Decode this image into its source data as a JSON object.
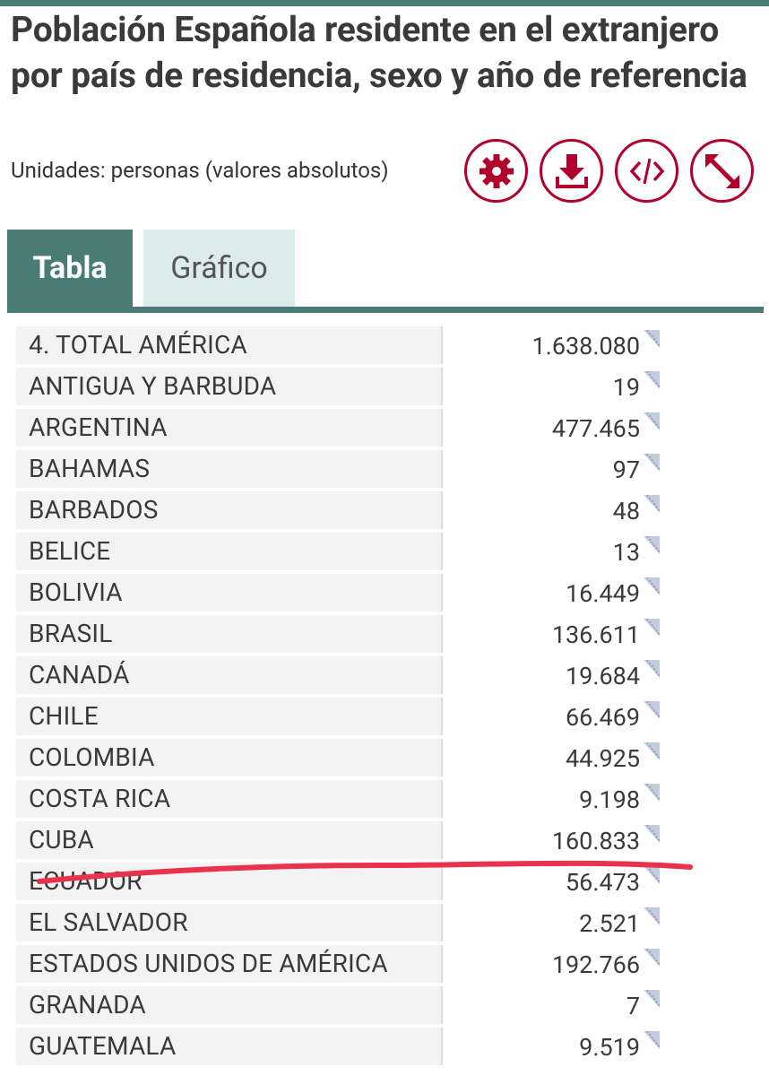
{
  "page": {
    "title": "Población Española residente en el extranjero por país de residencia, sexo y año de referencia",
    "units": "Unidades: personas (valores absolutos)"
  },
  "toolbar": {
    "buttons": [
      {
        "name": "settings-button",
        "icon": "gear-icon"
      },
      {
        "name": "download-button",
        "icon": "download-icon"
      },
      {
        "name": "embed-button",
        "icon": "code-icon"
      },
      {
        "name": "fullscreen-button",
        "icon": "expand-icon"
      }
    ]
  },
  "tabs": [
    {
      "label": "Tabla",
      "active": true
    },
    {
      "label": "Gráfico",
      "active": false
    }
  ],
  "table": {
    "rows": [
      {
        "label": "4. TOTAL AMÉRICA",
        "value": "1.638.080"
      },
      {
        "label": "ANTIGUA Y BARBUDA",
        "value": "19"
      },
      {
        "label": "ARGENTINA",
        "value": "477.465"
      },
      {
        "label": "BAHAMAS",
        "value": "97"
      },
      {
        "label": "BARBADOS",
        "value": "48"
      },
      {
        "label": "BELICE",
        "value": "13"
      },
      {
        "label": "BOLIVIA",
        "value": "16.449"
      },
      {
        "label": "BRASIL",
        "value": "136.611"
      },
      {
        "label": "CANADÁ",
        "value": "19.684"
      },
      {
        "label": "CHILE",
        "value": "66.469"
      },
      {
        "label": "COLOMBIA",
        "value": "44.925"
      },
      {
        "label": "COSTA RICA",
        "value": "9.198"
      },
      {
        "label": "CUBA",
        "value": "160.833"
      },
      {
        "label": "ECUADOR",
        "value": "56.473"
      },
      {
        "label": "EL SALVADOR",
        "value": "2.521"
      },
      {
        "label": "ESTADOS UNIDOS DE AMÉRICA",
        "value": "192.766"
      },
      {
        "label": "GRANADA",
        "value": "7"
      },
      {
        "label": "GUATEMALA",
        "value": "9.519"
      }
    ]
  },
  "colors": {
    "accent_teal": "#4a7b74",
    "tab_inactive_bg": "#dbeceb",
    "icon_red": "#b0002c",
    "annotation_red": "#e8334f"
  }
}
